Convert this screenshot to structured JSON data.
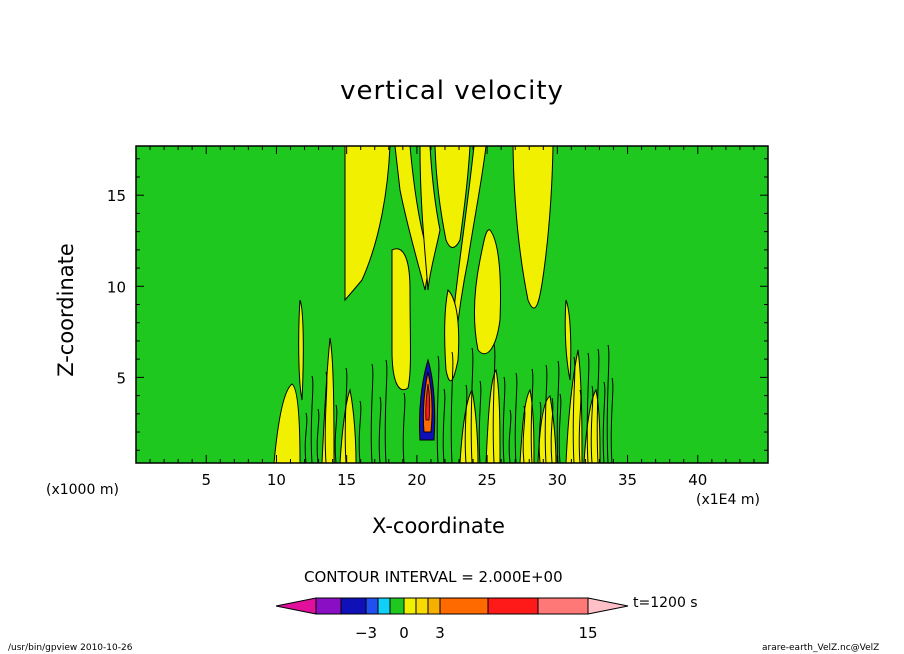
{
  "chart_data": {
    "type": "heatmap",
    "title": "vertical velocity",
    "xlabel": "X-coordinate",
    "ylabel": "Z-coordinate",
    "x_unit_left": "(x1000 m)",
    "x_unit_right": "(x1E4 m)",
    "xlim": [
      0,
      45
    ],
    "ylim": [
      0.3,
      17.7
    ],
    "x_ticks": [
      "5",
      "10",
      "15",
      "20",
      "25",
      "30",
      "35",
      "40"
    ],
    "y_ticks": [
      "5",
      "10",
      "15"
    ],
    "contour_interval": "CONTOUR INTERVAL = 2.000E+00",
    "time_label": "t=1200 s",
    "colorbar_tick_labels": [
      "−3",
      "0",
      "3",
      "15"
    ],
    "colorbar_colors": [
      "#e0109c",
      "#8a0fc4",
      "#1010b8",
      "#2050f0",
      "#10d0f8",
      "#1ec81e",
      "#f0f000",
      "#f8dc00",
      "#f8b000",
      "#ff6a00",
      "#ff1a1a",
      "#ff7878",
      "#ffc0c8"
    ],
    "background_color": "#1ec81e",
    "positive_color": "#f0f000",
    "strong_positive_color": "#ff6a00"
  },
  "footer": {
    "left": "/usr/bin/gpview  2010-10-26",
    "right": "arare-earth_VelZ.nc@VelZ"
  }
}
